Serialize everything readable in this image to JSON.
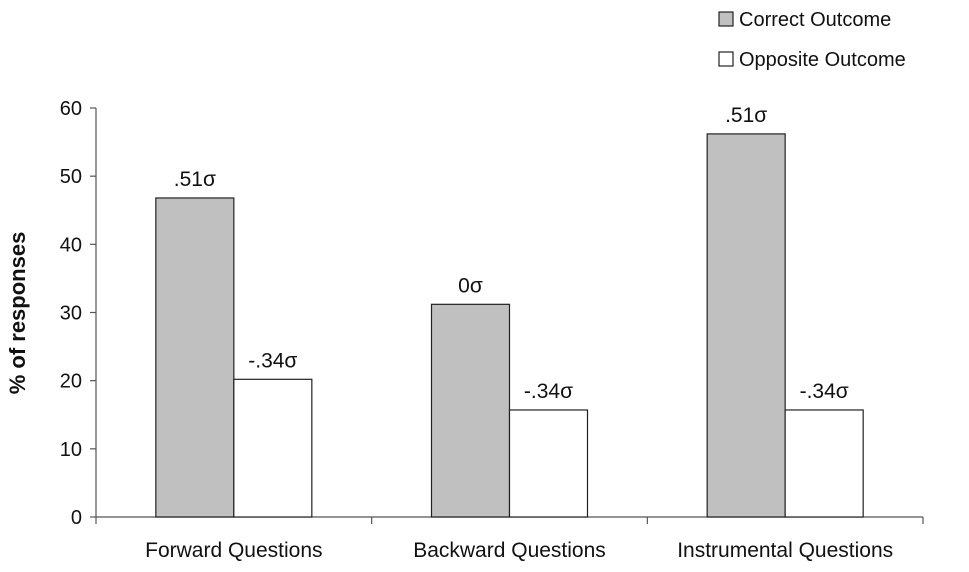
{
  "chart_data": {
    "type": "bar",
    "categories": [
      "Forward Questions",
      "Backward Questions",
      "Instrumental Questions"
    ],
    "series": [
      {
        "name": "Correct Outcome",
        "values": [
          46.8,
          31.2,
          56.2
        ],
        "labels": [
          ".51σ",
          "0σ",
          ".51σ"
        ],
        "color": "#c0c0c0"
      },
      {
        "name": "Opposite Outcome",
        "values": [
          20.2,
          15.7,
          15.7
        ],
        "labels": [
          "-.34σ",
          "-.34σ",
          "-.34σ"
        ],
        "color": "#ffffff"
      }
    ],
    "title": "",
    "xlabel": "",
    "ylabel": "% of responses",
    "ylim": [
      0,
      60
    ],
    "yticks": [
      0,
      10,
      20,
      30,
      40,
      50,
      60
    ],
    "grid": false,
    "legend_position": "top-right"
  }
}
